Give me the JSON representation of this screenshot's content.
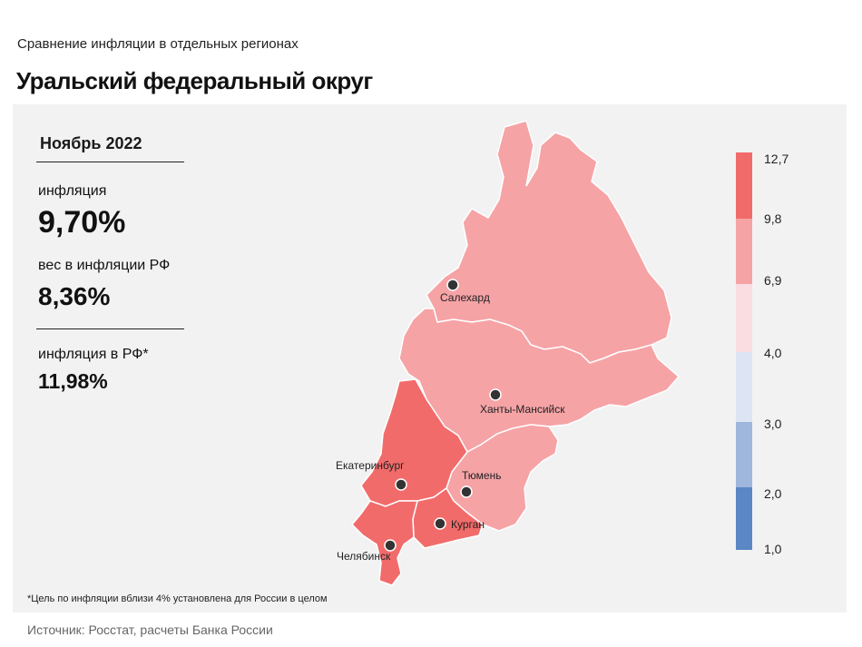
{
  "header": {
    "subtitle": "Сравнение  инфляции  в отдельных  регионах",
    "title": "Уральский федеральный округ"
  },
  "stats": {
    "period": "Ноябрь 2022",
    "inflation_label": "инфляция",
    "inflation_value": "9,70%",
    "weight_label": "вес в инфляции  РФ",
    "weight_value": "8,36%",
    "rf_inflation_label": "инфляция  в РФ*",
    "rf_inflation_value": "11,98%"
  },
  "legend": {
    "ticks": [
      "12,7",
      "9,8",
      "6,9",
      "4,0",
      "3,0",
      "2,0",
      "1,0"
    ],
    "bands": [
      {
        "from": "9,8",
        "to": "12,7",
        "color": "#f26b6b"
      },
      {
        "from": "6,9",
        "to": "9,8",
        "color": "#f6a3a6"
      },
      {
        "from": "4,0",
        "to": "6,9",
        "color": "#f9dde0"
      },
      {
        "from": "3,0",
        "to": "4,0",
        "color": "#dde4f3"
      },
      {
        "from": "2,0",
        "to": "3,0",
        "color": "#9fb6dd"
      },
      {
        "from": "1,0",
        "to": "2,0",
        "color": "#5b87c5"
      }
    ]
  },
  "map": {
    "regions": [
      {
        "name": "Ямало-Ненецкий АО",
        "color": "#f6a3a6"
      },
      {
        "name": "Ханты-Мансийский АО",
        "color": "#f6a3a6"
      },
      {
        "name": "Тюменская область",
        "color": "#f6a3a6"
      },
      {
        "name": "Свердловская область",
        "color": "#f26b6b"
      },
      {
        "name": "Курганская область",
        "color": "#f26b6b"
      },
      {
        "name": "Челябинская область",
        "color": "#f26b6b"
      }
    ],
    "cities": [
      "Салехард",
      "Ханты-Мансийск",
      "Екатеринбург",
      "Тюмень",
      "Курган",
      "Челябинск"
    ]
  },
  "footnote": "*Цель по инфляции вблизи 4% установлена для России в целом",
  "source": "Источник: Росстат, расчеты Банка России"
}
